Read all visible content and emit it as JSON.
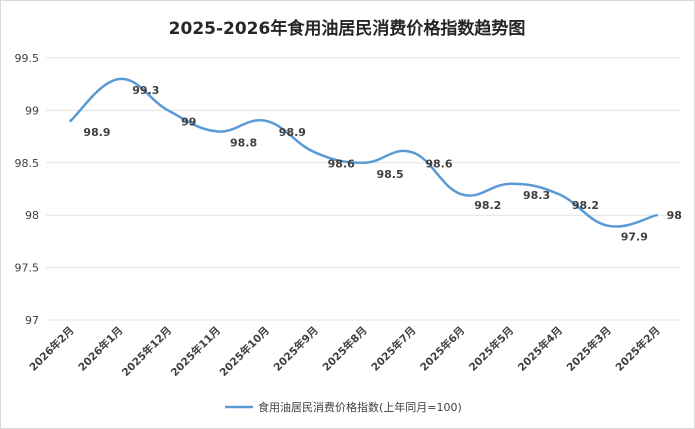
{
  "chart_data": {
    "type": "line",
    "title": "2025-2026年食用油居民消费价格指数趋势图",
    "xlabel": "",
    "ylabel": "",
    "categories": [
      "2026年2月",
      "2026年1月",
      "2025年12月",
      "2025年11月",
      "2025年10月",
      "2025年9月",
      "2025年8月",
      "2025年7月",
      "2025年6月",
      "2025年5月",
      "2025年4月",
      "2025年3月",
      "2025年2月"
    ],
    "series": [
      {
        "name": "食用油居民消费价格指数(上年同月=100)",
        "values": [
          98.9,
          99.3,
          99,
          98.8,
          98.9,
          98.6,
          98.5,
          98.6,
          98.2,
          98.3,
          98.2,
          97.9,
          98
        ],
        "labels": [
          "98.9",
          "99.3",
          "99",
          "98.8",
          "98.9",
          "98.6",
          "98.5",
          "98.6",
          "98.2",
          "98.3",
          "98.2",
          "97.9",
          "98"
        ]
      }
    ],
    "y_ticks": [
      "97",
      "97.5",
      "98",
      "98.5",
      "99",
      "99.5"
    ],
    "ylim": [
      97,
      99.5
    ],
    "grid": true,
    "legend_position": "bottom",
    "line_color": "#5b9bd5"
  }
}
